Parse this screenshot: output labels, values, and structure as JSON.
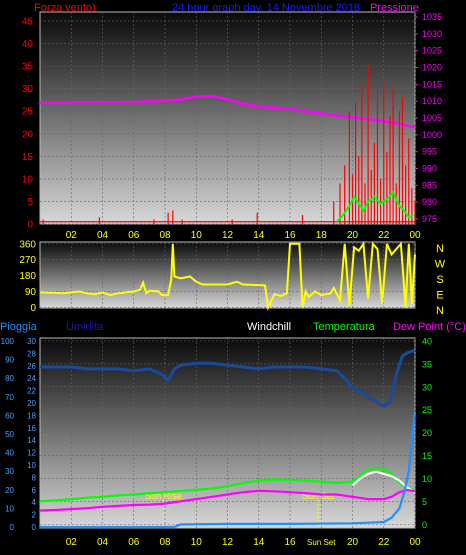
{
  "header": {
    "wind_label": "Forza vento)",
    "title": "24 hour graph day, 14 Novembre 2018",
    "pressure_label": "Pressione"
  },
  "middle": {
    "compass": [
      "N",
      "W",
      "S",
      "E",
      "N"
    ]
  },
  "bottom_header": {
    "rain_label": "Pioggia",
    "humidity_label": "Umidita",
    "windchill_label": "Windchill",
    "temperature_label": "Temperatura",
    "dewpoint_label": "Dew Point (°C)"
  },
  "colors": {
    "wind": "#ff0000",
    "gust": "#00ff00",
    "pressure": "#ff00ff",
    "direction": "#ffff00",
    "rain": "#1e90ff",
    "humidity": "#1a4aa0",
    "windchill": "#ffffff",
    "temperature": "#00ff00",
    "dewpoint": "#ff00ff",
    "annotation": "#ffff00",
    "axis_text": "#ffff00",
    "grid": "#666666"
  },
  "chart_data": [
    {
      "type": "area",
      "panel": "top",
      "x_ticks": [
        "02",
        "04",
        "06",
        "08",
        "10",
        "12",
        "14",
        "16",
        "18",
        "20",
        "22",
        "00"
      ],
      "x_range_hours": [
        0,
        24
      ],
      "left_axis": {
        "label": "Forza vento)",
        "ticks": [
          0,
          5,
          10,
          15,
          20,
          25,
          30,
          35,
          40,
          45
        ],
        "range": [
          0,
          47
        ]
      },
      "right_axis": {
        "label": "Pressione",
        "ticks": [
          975,
          980,
          985,
          990,
          995,
          1000,
          1005,
          1010,
          1015,
          1020,
          1025,
          1030,
          1035
        ],
        "range": [
          973.5,
          1036.5
        ]
      },
      "series": [
        {
          "name": "Pressione",
          "axis": "right",
          "x": [
            0,
            1,
            2,
            3,
            4,
            5,
            6,
            7,
            8,
            9,
            10,
            11,
            12,
            13,
            14,
            15,
            16,
            17,
            18,
            19,
            20,
            21,
            22,
            23,
            23.5,
            24
          ],
          "y": [
            1009.5,
            1009.5,
            1009.6,
            1009.6,
            1009.7,
            1009.6,
            1009.7,
            1009.9,
            1010.1,
            1010.5,
            1011.3,
            1011.5,
            1010.6,
            1009.2,
            1008.4,
            1008.1,
            1007.8,
            1007.0,
            1006.3,
            1005.7,
            1005.2,
            1004.7,
            1004.1,
            1003.3,
            1002.7,
            1002.3
          ]
        },
        {
          "name": "Forza vento",
          "axis": "left",
          "style": "spikes",
          "x": [
            0.2,
            3.8,
            7.3,
            8.2,
            8.5,
            9.1,
            12.3,
            13.9,
            16.8,
            18.8,
            19.2,
            19.5,
            19.8,
            20.0,
            20.2,
            20.4,
            20.6,
            20.8,
            21.0,
            21.2,
            21.4,
            21.6,
            21.8,
            22.0,
            22.2,
            22.4,
            22.6,
            22.8,
            23.0,
            23.2,
            23.4,
            23.6,
            23.8,
            24.0
          ],
          "y": [
            1,
            1.5,
            1,
            2.5,
            3,
            1,
            1,
            2.5,
            2,
            5,
            9,
            13,
            25,
            11,
            27,
            15,
            31,
            9,
            35,
            12,
            18,
            30,
            10,
            32,
            16,
            24,
            30,
            9,
            25,
            28,
            13,
            19,
            8,
            5
          ]
        },
        {
          "name": "Raffica",
          "axis": "left",
          "x": [
            19.0,
            19.4,
            19.8,
            20.1,
            20.4,
            20.7,
            21.0,
            21.4,
            21.8,
            22.2,
            22.6,
            23.0,
            23.3,
            23.6,
            23.9
          ],
          "y": [
            0.5,
            2,
            4,
            6,
            4.5,
            3,
            5,
            6,
            4.5,
            5.5,
            7,
            4,
            3,
            1.5,
            2
          ]
        }
      ]
    },
    {
      "type": "line",
      "panel": "middle",
      "x_range_hours": [
        0,
        24
      ],
      "y_axis": {
        "ticks": [
          0,
          90,
          180,
          270,
          360
        ],
        "range": [
          -3,
          370
        ]
      },
      "series": [
        {
          "name": "Direzione",
          "x": [
            0,
            1.5,
            2.5,
            3.0,
            3.5,
            4.0,
            4.5,
            5.0,
            5.5,
            6.0,
            6.4,
            6.6,
            6.8,
            7.0,
            7.6,
            7.8,
            8.2,
            8.4,
            8.5,
            8.6,
            9.0,
            9.6,
            10.0,
            10.4,
            12.0,
            12.6,
            13.0,
            14.4,
            14.6,
            15.0,
            15.4,
            15.8,
            16.0,
            16.6,
            16.8,
            17.0,
            17.2,
            17.6,
            18.0,
            18.6,
            18.8,
            19.2,
            19.5,
            19.8,
            20.1,
            20.4,
            20.7,
            21.0,
            21.3,
            21.6,
            21.9,
            22.2,
            22.5,
            22.8,
            23.1,
            23.4,
            23.6,
            23.8,
            24.0
          ],
          "y": [
            85,
            80,
            90,
            80,
            75,
            85,
            70,
            80,
            85,
            90,
            100,
            140,
            80,
            95,
            90,
            70,
            70,
            160,
            360,
            175,
            165,
            175,
            145,
            130,
            130,
            145,
            130,
            125,
            0,
            75,
            65,
            80,
            360,
            360,
            0,
            90,
            60,
            90,
            70,
            80,
            110,
            40,
            360,
            10,
            340,
            320,
            360,
            50,
            360,
            330,
            20,
            360,
            300,
            330,
            360,
            0,
            360,
            20,
            300
          ]
        }
      ]
    },
    {
      "type": "line",
      "panel": "bottom",
      "x_ticks": [
        "02",
        "04",
        "06",
        "08",
        "10",
        "12",
        "14",
        "16",
        "Sun Set",
        "20",
        "22",
        "00"
      ],
      "x_range_hours": [
        0,
        24
      ],
      "left_axis_rain": {
        "label": "Pioggia",
        "ticks": [
          0,
          2,
          4,
          6,
          8,
          10,
          12,
          14,
          16,
          18,
          20,
          22,
          24,
          26,
          28,
          30
        ]
      },
      "left_axis_humidity": {
        "label": "Umidita",
        "ticks": [
          0,
          10,
          20,
          30,
          40,
          50,
          60,
          70,
          80,
          90,
          100
        ]
      },
      "right_axis": {
        "label": "Dew Point (°C)",
        "ticks": [
          0,
          5,
          10,
          15,
          20,
          25,
          30,
          35,
          40
        ],
        "range": [
          -0.6,
          40
        ]
      },
      "annotations": [
        {
          "label": "Sun Rise",
          "x": 7.9
        },
        {
          "label": "Sun Set",
          "x": 17.8
        }
      ],
      "series": [
        {
          "name": "Umidita",
          "axis": "humidity",
          "x": [
            0,
            1,
            2,
            3,
            4,
            5,
            6,
            7,
            7.8,
            8.2,
            8.6,
            9,
            10,
            11,
            12,
            13,
            14,
            15,
            16,
            17,
            18,
            19,
            19.5,
            20,
            21,
            22,
            22.4,
            22.8,
            23.2,
            23.6,
            24
          ],
          "y": [
            86,
            86,
            86,
            85,
            85,
            85,
            84,
            85,
            82,
            79,
            85,
            87,
            88,
            88,
            87,
            86,
            85,
            86,
            86,
            86,
            85,
            84,
            80,
            75,
            70,
            65,
            67,
            82,
            92,
            94,
            95
          ]
        },
        {
          "name": "Temperatura",
          "axis": "right",
          "x": [
            0,
            1,
            2,
            3,
            4,
            5,
            6,
            7,
            8,
            9,
            10,
            11,
            12,
            13,
            14,
            15,
            16,
            17,
            18,
            19,
            20,
            21,
            21.5,
            22,
            22.5,
            23,
            23.5,
            24
          ],
          "y": [
            5.0,
            5.2,
            5.5,
            5.8,
            6.0,
            6.3,
            6.5,
            6.8,
            7.0,
            7.3,
            7.5,
            7.8,
            8.3,
            9.0,
            9.5,
            9.8,
            9.7,
            9.5,
            9.3,
            9.0,
            9.3,
            12.0,
            12.0,
            12.0,
            11.0,
            9.0,
            8.0,
            7.5
          ]
        },
        {
          "name": "Windchill",
          "axis": "right",
          "x": [
            20,
            20.5,
            21,
            21.5,
            22,
            22.5,
            23,
            23.5,
            24
          ],
          "y": [
            8.5,
            10.0,
            11.0,
            11.5,
            11.0,
            10.5,
            9.5,
            8.0,
            7.0
          ]
        },
        {
          "name": "Dew Point",
          "axis": "right",
          "x": [
            0,
            1,
            2,
            3,
            4,
            5,
            6,
            7,
            8,
            9,
            10,
            11,
            12,
            13,
            14,
            15,
            16,
            17,
            18,
            19,
            20,
            21,
            22,
            22.5,
            23,
            23.5,
            24
          ],
          "y": [
            3.0,
            3.1,
            3.3,
            3.5,
            3.8,
            4.0,
            4.2,
            4.3,
            4.5,
            5.0,
            5.5,
            6.0,
            6.5,
            7.0,
            7.3,
            7.2,
            7.0,
            6.8,
            6.5,
            6.5,
            6.0,
            5.5,
            5.5,
            6.0,
            7.0,
            7.5,
            7.2
          ]
        },
        {
          "name": "Pioggia",
          "axis": "rain",
          "x": [
            0,
            8.6,
            9,
            12,
            16,
            20,
            22,
            22.5,
            23,
            23.3,
            23.6,
            23.8,
            24
          ],
          "y": [
            0,
            0,
            0.4,
            0.5,
            0.5,
            0.6,
            0.8,
            1.5,
            3.0,
            5.5,
            9.0,
            14.0,
            18.5
          ]
        }
      ]
    }
  ]
}
